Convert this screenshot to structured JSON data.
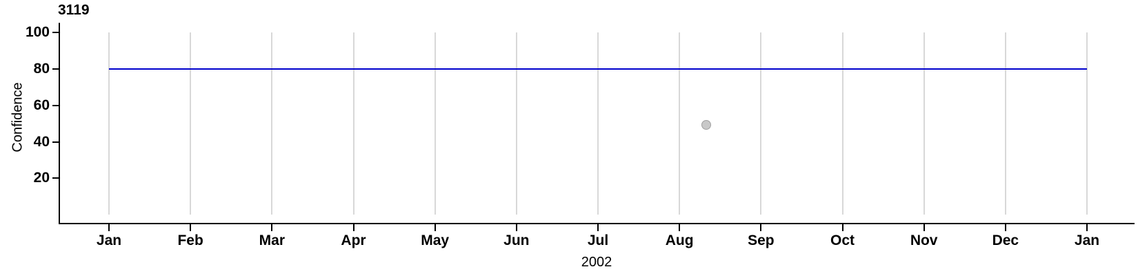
{
  "chart_data": {
    "type": "line",
    "title": "3119",
    "xlabel": "2002",
    "ylabel": "Confidence",
    "x_tick_labels": [
      "Jan",
      "Feb",
      "Mar",
      "Apr",
      "May",
      "Jun",
      "Jul",
      "Aug",
      "Sep",
      "Oct",
      "Nov",
      "Dec",
      "Jan"
    ],
    "y_ticks": [
      20,
      40,
      60,
      80,
      100
    ],
    "ylim": [
      0,
      100
    ],
    "xlim_month_index": [
      0,
      12
    ],
    "grid": "vertical-at-month-ticks",
    "legend_position": "none",
    "series": [
      {
        "name": "confidence-threshold-line",
        "type": "line",
        "color": "#0000CC",
        "points": [
          {
            "x_month": 0,
            "y": 80
          },
          {
            "x_month": 12,
            "y": 80
          }
        ]
      },
      {
        "name": "observation-point",
        "type": "scatter",
        "fill_color": "#C8C8C8",
        "border_color": "#A0A0A0",
        "points": [
          {
            "x_month": 7.33,
            "y": 49
          }
        ]
      }
    ],
    "colors": {
      "axis": "#000000",
      "gridline": "#D8D8D8",
      "text": "#000000",
      "background": "#FFFFFF"
    }
  }
}
